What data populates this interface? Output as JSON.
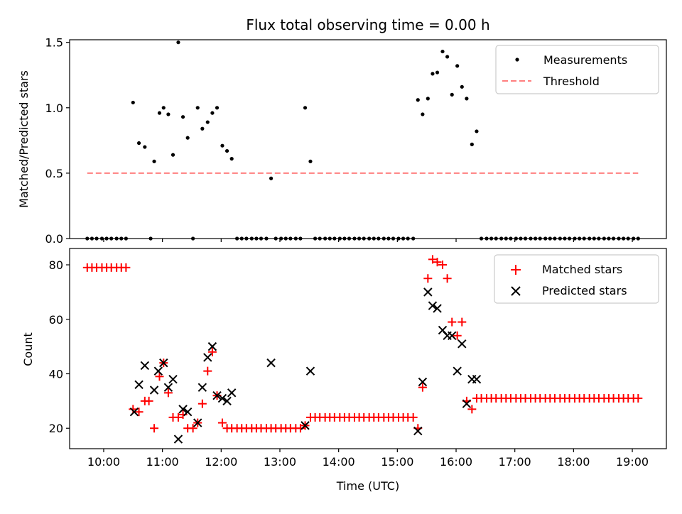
{
  "chart_data": [
    {
      "type": "scatter",
      "title": "Flux total observing time = 0.00 h",
      "xlabel": "",
      "ylabel": "Matched/Predicted stars",
      "xlim": [
        9.42,
        19.58
      ],
      "ylim": [
        0,
        1.52
      ],
      "yticks": [
        0.0,
        0.5,
        1.0,
        1.5
      ],
      "ytick_labels": [
        "0.0",
        "0.5",
        "1.0",
        "1.5"
      ],
      "grid": false,
      "legend_position": "top-right",
      "series": [
        {
          "name": "Measurements",
          "marker": "dot",
          "color": "#000000",
          "x": [
            9.72,
            9.8,
            9.88,
            9.97,
            10.05,
            10.13,
            10.22,
            10.3,
            10.38,
            10.5,
            10.6,
            10.7,
            10.8,
            10.86,
            10.95,
            11.02,
            11.1,
            11.18,
            11.27,
            11.35,
            11.43,
            11.52,
            11.6,
            11.68,
            11.77,
            11.85,
            11.93,
            12.02,
            12.1,
            12.18,
            12.27,
            12.35,
            12.43,
            12.52,
            12.6,
            12.68,
            12.77,
            12.85,
            12.93,
            13.02,
            13.1,
            13.18,
            13.27,
            13.35,
            13.43,
            13.52,
            13.6,
            13.68,
            13.77,
            13.85,
            13.93,
            14.02,
            14.1,
            14.18,
            14.27,
            14.35,
            14.43,
            14.52,
            14.6,
            14.68,
            14.77,
            14.85,
            14.93,
            15.02,
            15.1,
            15.18,
            15.27,
            15.35,
            15.43,
            15.52,
            15.6,
            15.68,
            15.77,
            15.85,
            15.93,
            16.02,
            16.1,
            16.18,
            16.27,
            16.35,
            16.43,
            16.52,
            16.6,
            16.68,
            16.77,
            16.85,
            16.93,
            17.02,
            17.1,
            17.18,
            17.27,
            17.35,
            17.43,
            17.52,
            17.6,
            17.68,
            17.77,
            17.85,
            17.93,
            18.02,
            18.1,
            18.18,
            18.27,
            18.35,
            18.43,
            18.52,
            18.6,
            18.68,
            18.77,
            18.85,
            18.93,
            19.02,
            19.1
          ],
          "y": [
            0,
            0,
            0,
            0,
            0,
            0,
            0,
            0,
            0,
            1.04,
            0.73,
            0.7,
            0,
            0.59,
            0.96,
            1.0,
            0.95,
            0.64,
            1.5,
            0.93,
            0.77,
            0,
            1.0,
            0.84,
            0.89,
            0.96,
            1.0,
            0.71,
            0.67,
            0.61,
            0,
            0,
            0,
            0,
            0,
            0,
            0,
            0.46,
            0,
            0,
            0,
            0,
            0,
            0,
            1.0,
            0.59,
            0,
            0,
            0,
            0,
            0,
            0,
            0,
            0,
            0,
            0,
            0,
            0,
            0,
            0,
            0,
            0,
            0,
            0,
            0,
            0,
            0,
            1.06,
            0.95,
            1.07,
            1.26,
            1.27,
            1.43,
            1.39,
            1.1,
            1.32,
            1.16,
            1.07,
            0.72,
            0.82,
            0,
            0,
            0,
            0,
            0,
            0,
            0,
            0,
            0,
            0,
            0,
            0,
            0,
            0,
            0,
            0,
            0,
            0,
            0,
            0,
            0,
            0,
            0,
            0,
            0,
            0,
            0,
            0,
            0,
            0,
            0,
            0,
            0
          ]
        },
        {
          "name": "Threshold",
          "marker": "dashed-line",
          "color": "#ff7f7f",
          "x": [
            9.72,
            19.1
          ],
          "y": [
            0.5,
            0.5
          ]
        }
      ]
    },
    {
      "type": "scatter",
      "title": "",
      "xlabel": "Time (UTC)",
      "ylabel": "Count",
      "xlim": [
        9.42,
        19.58
      ],
      "ylim": [
        12.5,
        86
      ],
      "yticks": [
        20,
        40,
        60,
        80
      ],
      "ytick_labels": [
        "20",
        "40",
        "60",
        "80"
      ],
      "xticks": [
        10,
        11,
        12,
        13,
        14,
        15,
        16,
        17,
        18,
        19
      ],
      "xtick_labels": [
        "10:00",
        "11:00",
        "12:00",
        "13:00",
        "14:00",
        "15:00",
        "16:00",
        "17:00",
        "18:00",
        "19:00"
      ],
      "grid": false,
      "legend_position": "top-right",
      "series": [
        {
          "name": "Matched stars",
          "marker": "plus",
          "color": "#ff0000",
          "x": [
            9.72,
            9.8,
            9.88,
            9.97,
            10.05,
            10.13,
            10.22,
            10.3,
            10.38,
            10.5,
            10.6,
            10.7,
            10.77,
            10.86,
            10.95,
            11.02,
            11.1,
            11.18,
            11.27,
            11.35,
            11.43,
            11.52,
            11.6,
            11.68,
            11.77,
            11.85,
            11.93,
            12.02,
            12.1,
            12.18,
            12.27,
            12.35,
            12.43,
            12.52,
            12.6,
            12.68,
            12.77,
            12.85,
            12.93,
            13.02,
            13.1,
            13.18,
            13.27,
            13.35,
            13.43,
            13.52,
            13.6,
            13.68,
            13.77,
            13.85,
            13.93,
            14.02,
            14.1,
            14.18,
            14.27,
            14.35,
            14.43,
            14.52,
            14.6,
            14.68,
            14.77,
            14.85,
            14.93,
            15.02,
            15.1,
            15.18,
            15.27,
            15.35,
            15.43,
            15.52,
            15.6,
            15.68,
            15.77,
            15.85,
            15.93,
            16.02,
            16.1,
            16.18,
            16.27,
            16.35,
            16.43,
            16.52,
            16.6,
            16.68,
            16.77,
            16.85,
            16.93,
            17.02,
            17.1,
            17.18,
            17.27,
            17.35,
            17.43,
            17.52,
            17.6,
            17.68,
            17.77,
            17.85,
            17.93,
            18.02,
            18.1,
            18.18,
            18.27,
            18.35,
            18.43,
            18.52,
            18.6,
            18.68,
            18.77,
            18.85,
            18.93,
            19.02,
            19.1
          ],
          "y": [
            79,
            79,
            79,
            79,
            79,
            79,
            79,
            79,
            79,
            27,
            26,
            30,
            30,
            20,
            39,
            44,
            33,
            24,
            24,
            25,
            20,
            20,
            22,
            29,
            41,
            48,
            32,
            22,
            20,
            20,
            20,
            20,
            20,
            20,
            20,
            20,
            20,
            20,
            20,
            20,
            20,
            20,
            20,
            20,
            21,
            24,
            24,
            24,
            24,
            24,
            24,
            24,
            24,
            24,
            24,
            24,
            24,
            24,
            24,
            24,
            24,
            24,
            24,
            24,
            24,
            24,
            24,
            20,
            35,
            75,
            82,
            81,
            80,
            75,
            59,
            54,
            59,
            30,
            27,
            31,
            31,
            31,
            31,
            31,
            31,
            31,
            31,
            31,
            31,
            31,
            31,
            31,
            31,
            31,
            31,
            31,
            31,
            31,
            31,
            31,
            31,
            31,
            31,
            31,
            31,
            31,
            31,
            31,
            31,
            31,
            31,
            31,
            31
          ]
        },
        {
          "name": "Predicted stars",
          "marker": "x",
          "color": "#000000",
          "x": [
            10.52,
            10.6,
            10.7,
            10.86,
            10.93,
            11.02,
            11.1,
            11.18,
            11.27,
            11.35,
            11.43,
            11.6,
            11.68,
            11.77,
            11.85,
            11.93,
            12.02,
            12.1,
            12.18,
            12.85,
            13.43,
            13.52,
            15.35,
            15.43,
            15.52,
            15.6,
            15.68,
            15.77,
            15.85,
            15.93,
            16.02,
            16.1,
            16.18,
            16.27,
            16.35
          ],
          "y": [
            26,
            36,
            43,
            34,
            41,
            44,
            35,
            38,
            16,
            27,
            26,
            22,
            35,
            46,
            50,
            32,
            31,
            30,
            33,
            44,
            21,
            41,
            19,
            37,
            70,
            65,
            64,
            56,
            54,
            54,
            41,
            51,
            29,
            38,
            38
          ]
        }
      ]
    }
  ]
}
